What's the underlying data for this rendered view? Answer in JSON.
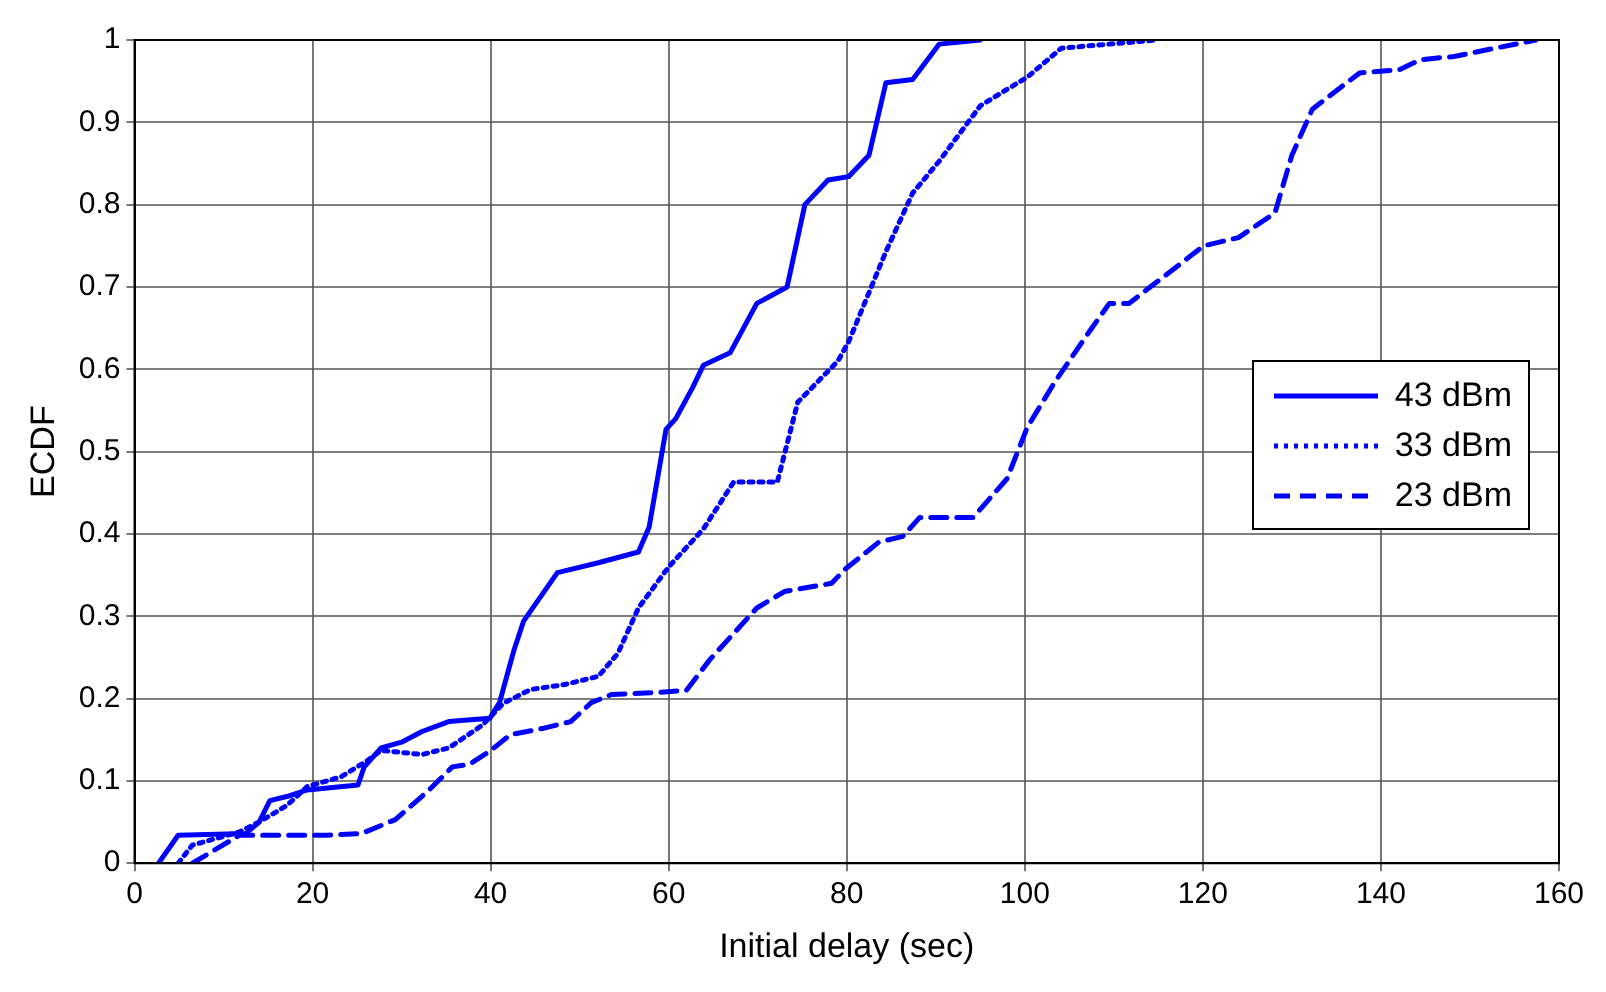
{
  "chart_data": {
    "type": "line",
    "xlabel": "Initial delay (sec)",
    "ylabel": "ECDF",
    "xlim": [
      0,
      160
    ],
    "xticks": [
      0,
      20,
      40,
      60,
      80,
      100,
      120,
      140,
      160
    ],
    "ylim": [
      0,
      1
    ],
    "yticks": [
      0,
      0.1,
      0.2,
      0.3,
      0.4,
      0.5,
      0.6,
      0.7,
      0.8,
      0.9,
      1
    ],
    "grid": true,
    "legend": "right",
    "marker": "none",
    "series": [
      {
        "name": "43 dBm",
        "color": "#0000ff",
        "line_style": "solid",
        "x": [
          2.7,
          4.9,
          12.5,
          14,
          15.2,
          17.1,
          19.4,
          25.1,
          25.8,
          27.7,
          30,
          32.3,
          35.3,
          39.9,
          41,
          42.6,
          43.7,
          47.5,
          52.1,
          56.6,
          57.8,
          59.7,
          60.8,
          62.7,
          63.9,
          66.9,
          69.9,
          73.3,
          75.3,
          77.9,
          80.2,
          82.5,
          84.4,
          87.4,
          90.4,
          95
        ],
        "values": [
          0,
          0.034,
          0.036,
          0.05,
          0.076,
          0.081,
          0.089,
          0.095,
          0.117,
          0.14,
          0.147,
          0.16,
          0.172,
          0.176,
          0.195,
          0.258,
          0.294,
          0.353,
          0.365,
          0.378,
          0.408,
          0.527,
          0.54,
          0.578,
          0.605,
          0.62,
          0.68,
          0.7,
          0.8,
          0.83,
          0.834,
          0.86,
          0.948,
          0.952,
          0.995,
          1
        ]
      },
      {
        "name": "33 dBm",
        "color": "#0000ff",
        "line_style": "dotted",
        "x": [
          4.9,
          6.5,
          11.8,
          14,
          17.1,
          19.4,
          23.2,
          26.2,
          27.7,
          32.3,
          35.3,
          39.1,
          41.4,
          44.5,
          48.3,
          52.1,
          54.3,
          56.6,
          60,
          63.9,
          67.3,
          72.2,
          74.5,
          79,
          80.2,
          84.4,
          87.4,
          90.4,
          95,
          98,
          100.3,
          104.1,
          114.8
        ],
        "values": [
          0,
          0.022,
          0.038,
          0.05,
          0.07,
          0.093,
          0.105,
          0.125,
          0.137,
          0.132,
          0.14,
          0.168,
          0.194,
          0.211,
          0.217,
          0.227,
          0.255,
          0.31,
          0.36,
          0.406,
          0.463,
          0.463,
          0.56,
          0.61,
          0.633,
          0.743,
          0.814,
          0.853,
          0.92,
          0.94,
          0.955,
          0.99,
          1
        ]
      },
      {
        "name": "23 dBm",
        "color": "#0000ff",
        "line_style": "dashed",
        "x": [
          6.5,
          11.8,
          21.7,
          25.5,
          29.3,
          33.1,
          35.7,
          37.6,
          39.9,
          42.2,
          46,
          49,
          51.3,
          53.6,
          58.2,
          62,
          64.6,
          69.9,
          73,
          78.3,
          79.8,
          83.6,
          86.3,
          88.2,
          94.2,
          98,
          100.3,
          103.4,
          107.2,
          109.5,
          111.7,
          120.1,
          124,
          128.1,
          130,
          132.3,
          137.6,
          142.1,
          144.4,
          148.2,
          157.4
        ],
        "values": [
          0,
          0.034,
          0.034,
          0.036,
          0.053,
          0.089,
          0.117,
          0.12,
          0.136,
          0.156,
          0.164,
          0.172,
          0.195,
          0.205,
          0.207,
          0.21,
          0.247,
          0.31,
          0.33,
          0.34,
          0.357,
          0.39,
          0.397,
          0.42,
          0.42,
          0.467,
          0.53,
          0.585,
          0.645,
          0.68,
          0.68,
          0.75,
          0.76,
          0.79,
          0.86,
          0.916,
          0.96,
          0.964,
          0.976,
          0.98,
          1
        ]
      }
    ]
  }
}
